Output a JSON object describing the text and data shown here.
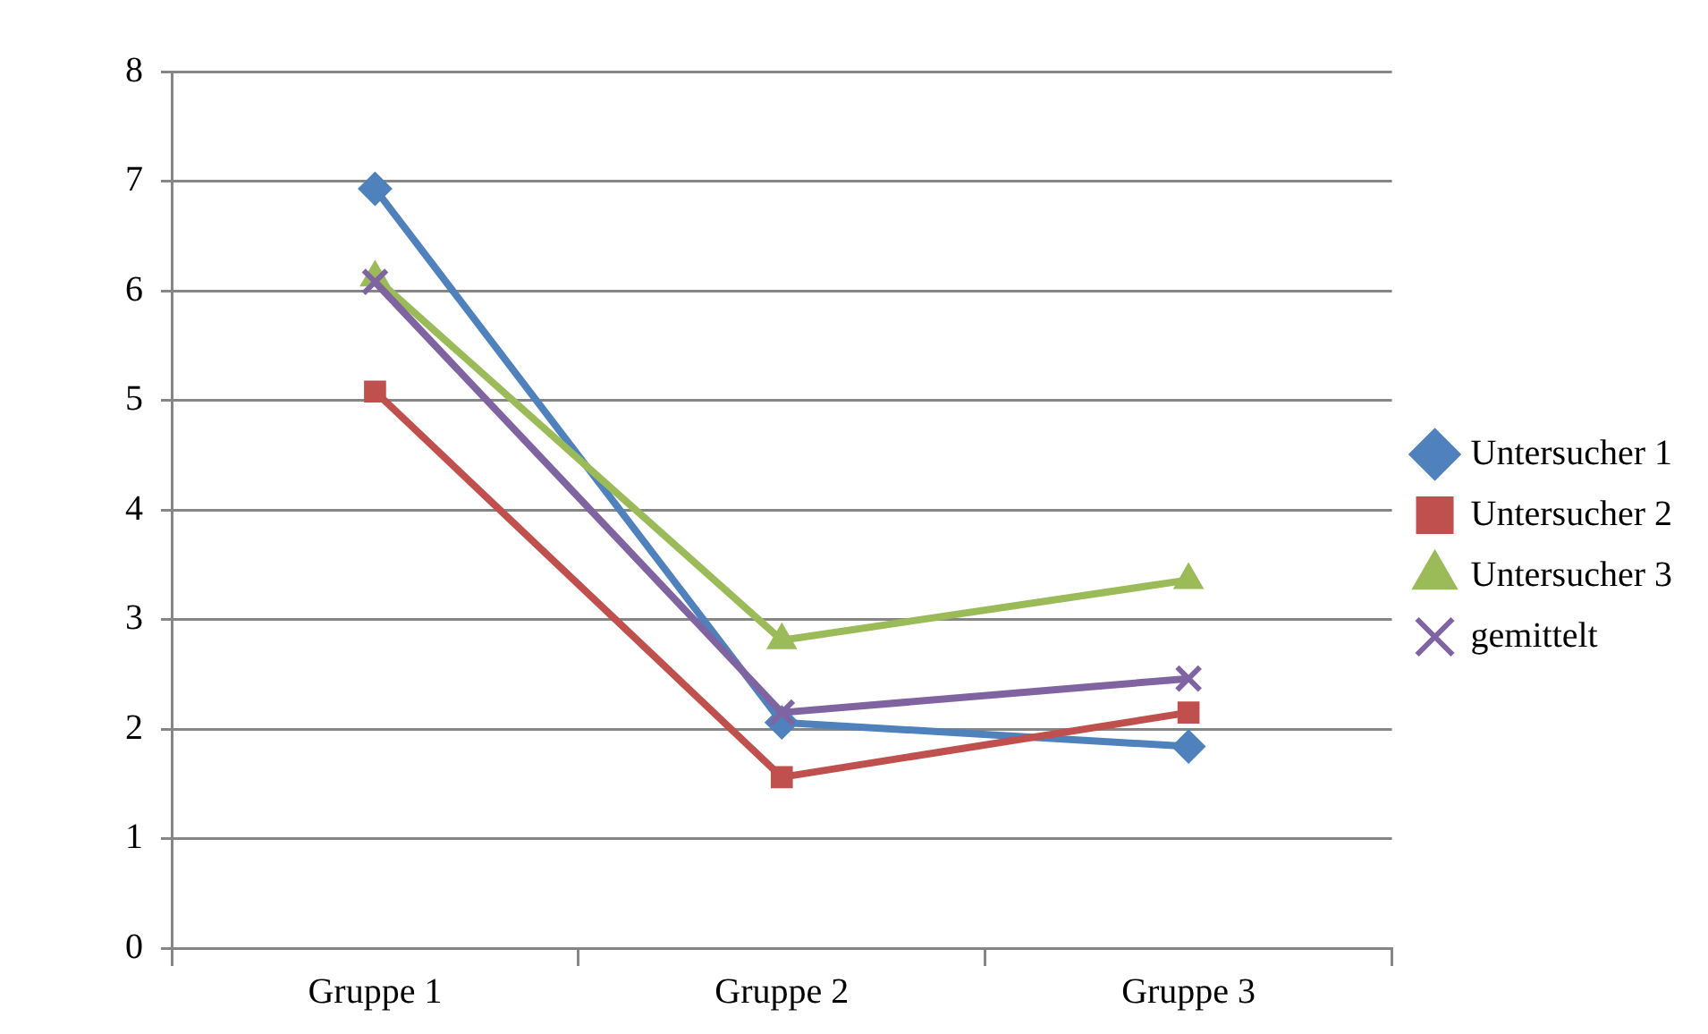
{
  "chart_data": {
    "type": "line",
    "categories": [
      "Gruppe 1",
      "Gruppe 2",
      "Gruppe 3"
    ],
    "series": [
      {
        "name": "Untersucher 1",
        "color": "#4f81bd",
        "marker": "diamond",
        "values": [
          6.93,
          2.06,
          1.84
        ]
      },
      {
        "name": "Untersucher 2",
        "color": "#c0504d",
        "marker": "square",
        "values": [
          5.08,
          1.56,
          2.15
        ]
      },
      {
        "name": "Untersucher 3",
        "color": "#9bbb59",
        "marker": "triangle",
        "values": [
          6.12,
          2.81,
          3.36
        ]
      },
      {
        "name": "gemittelt",
        "color": "#8064a2",
        "marker": "cross",
        "values": [
          6.08,
          2.15,
          2.46
        ]
      }
    ],
    "ylim": [
      0,
      8
    ],
    "yticks": [
      0,
      1,
      2,
      3,
      4,
      5,
      6,
      7,
      8
    ],
    "grid": "y",
    "legend": "right",
    "line_style": "solid"
  }
}
